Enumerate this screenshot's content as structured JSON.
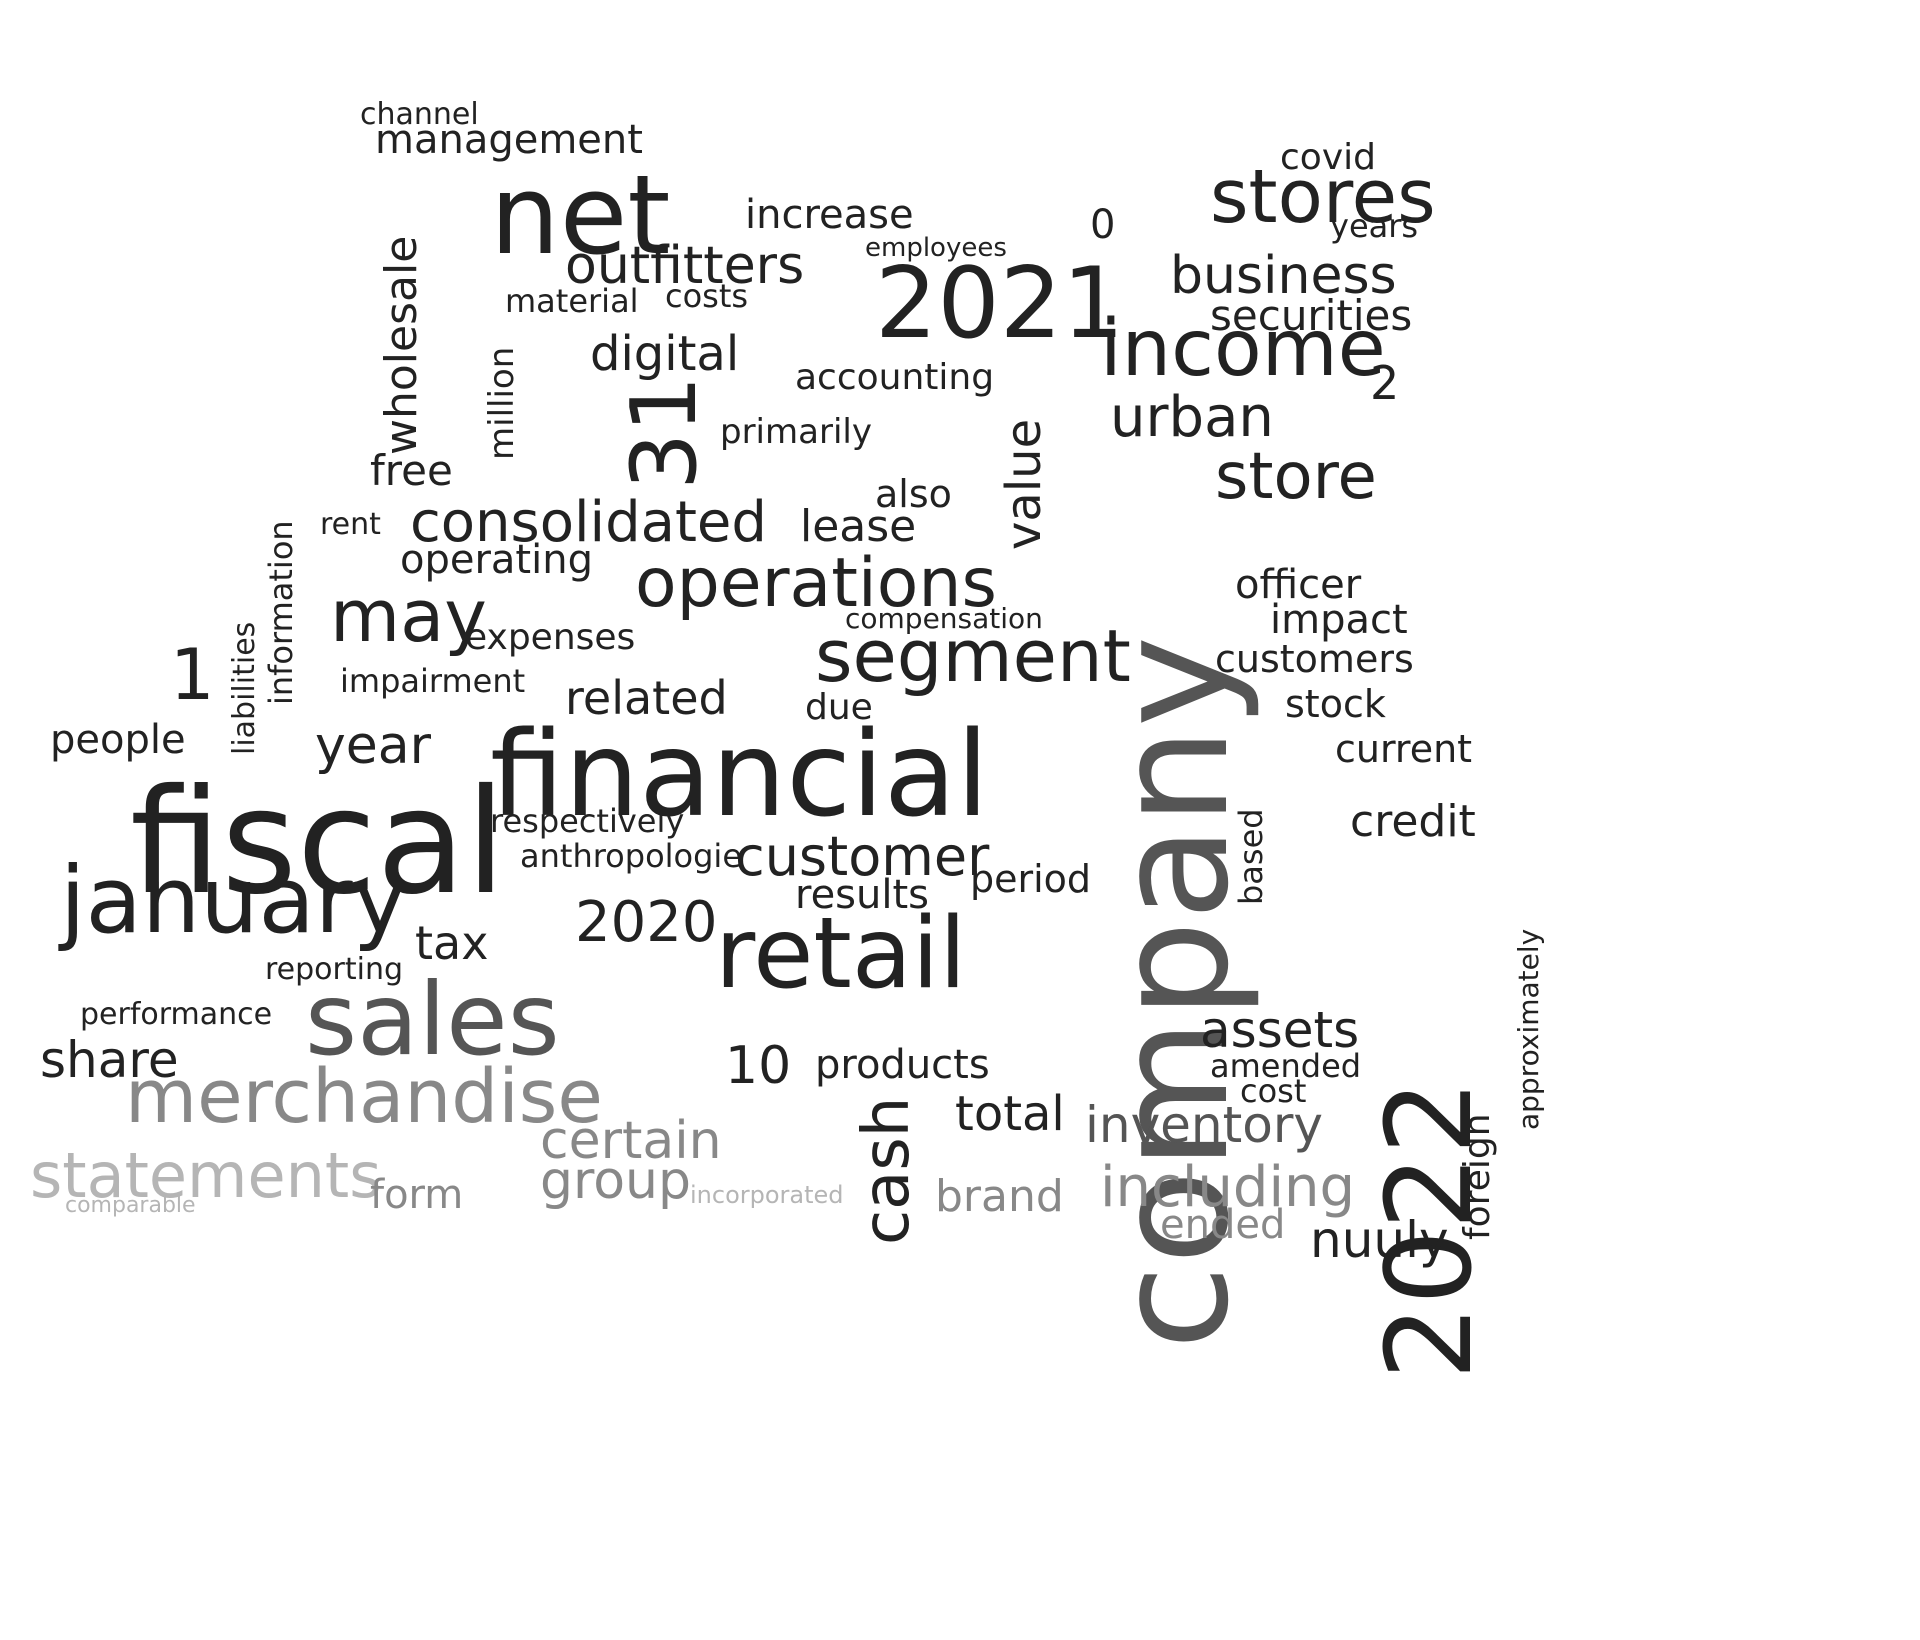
{
  "colors": {
    "background": "#ffffff",
    "dark": "#222222",
    "mid": "#555555",
    "gray": "#888888",
    "light": "#b5b5b5"
  },
  "words": [
    "company",
    "fiscal",
    "2022",
    "financial",
    "net",
    "sales",
    "2021",
    "retail",
    "january",
    "income",
    "stores",
    "merchandise",
    "segment",
    "may",
    "operations",
    "statements",
    "store",
    "customer",
    "cash",
    "certain",
    "outfitters",
    "urban",
    "consolidated",
    "including",
    "business",
    "group",
    "31",
    "digital",
    "year",
    "inventory",
    "securities",
    "tax",
    "2020",
    "wholesale",
    "assets",
    "related",
    "share",
    "value",
    "1",
    "total",
    "nuuly",
    "increase",
    "management",
    "operating",
    "brand",
    "form",
    "people",
    "million",
    "impact",
    "credit",
    "accounting",
    "period",
    "products",
    "results",
    "0",
    "expenses",
    "free",
    "lease",
    "officer",
    "customers",
    "current",
    "anthropologie",
    "respectively",
    "stock",
    "amended",
    "ended",
    "information",
    "2",
    "covid",
    "also",
    "due",
    "10",
    "liabilities",
    "foreign",
    "primarily",
    "impairment",
    "costs",
    "material",
    "channel",
    "approximately",
    "based",
    "rent",
    "reporting",
    "years",
    "compensation",
    "performance",
    "employees",
    "comparable",
    "incorporated",
    "cost"
  ]
}
